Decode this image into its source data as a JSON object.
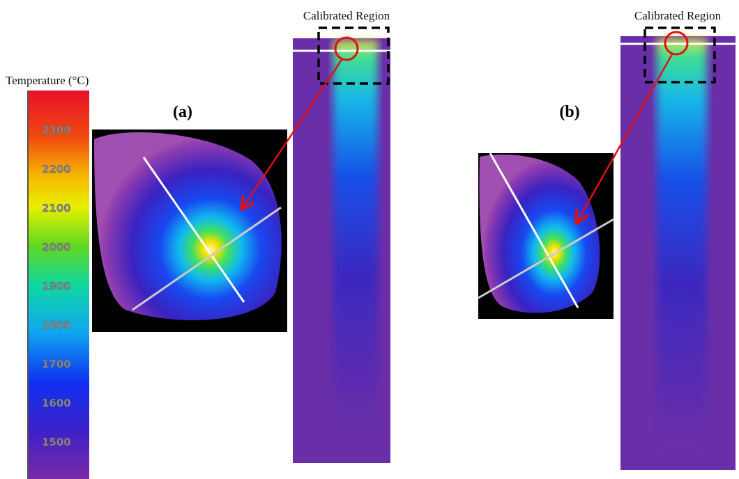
{
  "colorbar": {
    "title": "Temperature (°C)",
    "ticks": [
      2300,
      2200,
      2100,
      2000,
      1900,
      1800,
      1700,
      1600,
      1500
    ]
  },
  "panels": [
    {
      "label": "(a)",
      "region_label": "Calibrated Region"
    },
    {
      "label": "(b)",
      "region_label": "Calibrated Region"
    }
  ]
}
